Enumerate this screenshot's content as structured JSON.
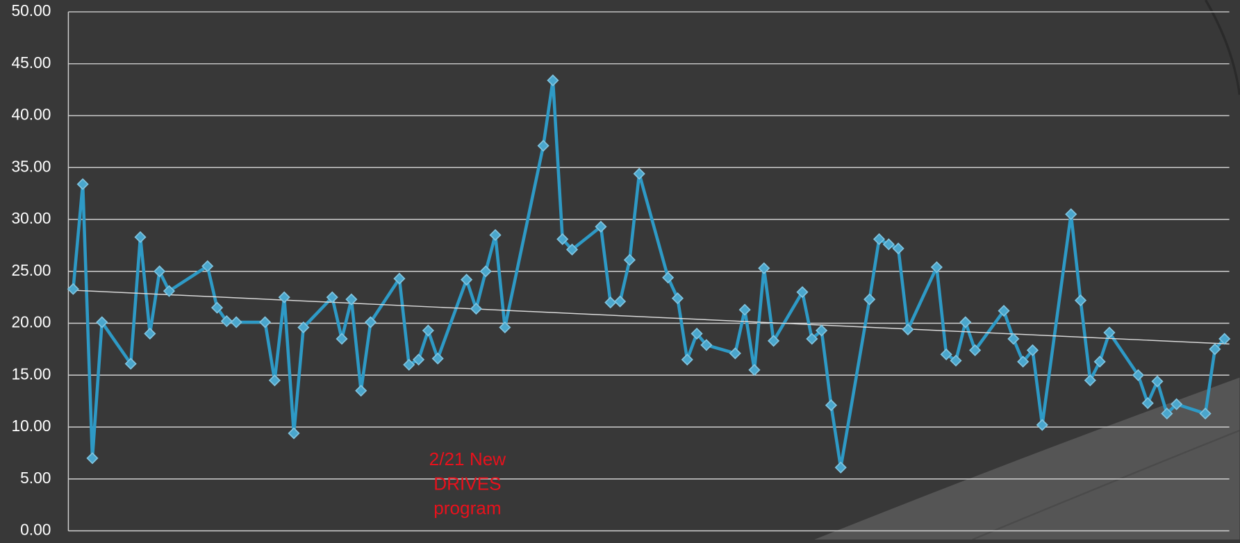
{
  "chart_data": {
    "type": "line",
    "x": [
      0,
      1,
      2,
      3,
      6,
      7,
      8,
      9,
      10,
      14,
      15,
      16,
      17,
      20,
      21,
      22,
      23,
      24,
      27,
      28,
      29,
      30,
      31,
      34,
      35,
      36,
      37,
      38,
      41,
      42,
      43,
      44,
      45,
      49,
      50,
      51,
      52,
      55,
      56,
      57,
      58,
      59,
      62,
      63,
      64,
      65,
      66,
      69,
      70,
      71,
      72,
      73,
      76,
      77,
      78,
      79,
      80,
      83,
      84,
      85,
      86,
      87,
      90,
      91,
      92,
      93,
      94,
      97,
      98,
      99,
      100,
      101,
      104,
      105,
      106,
      107,
      108,
      111,
      112,
      113,
      114,
      115,
      118,
      119,
      120
    ],
    "series": [
      {
        "color": "#2e9ac6",
        "values": [
          23.3,
          33.4,
          7.0,
          20.1,
          16.1,
          28.3,
          19.0,
          25.0,
          23.1,
          25.5,
          21.5,
          20.2,
          20.1,
          20.1,
          14.5,
          22.5,
          9.4,
          19.6,
          22.5,
          18.5,
          22.3,
          13.5,
          20.1,
          24.3,
          16.0,
          16.5,
          19.3,
          16.6,
          24.2,
          21.4,
          25.0,
          28.5,
          19.6,
          37.1,
          43.4,
          28.1,
          27.1,
          29.3,
          22.0,
          22.1,
          26.1,
          34.4,
          24.4,
          22.4,
          16.5,
          19.0,
          17.9,
          17.1,
          21.3,
          15.5,
          25.3,
          18.3,
          23.0,
          18.5,
          19.3,
          12.1,
          6.1,
          22.3,
          28.1,
          27.6,
          27.2,
          19.4,
          25.4,
          17.0,
          16.4,
          20.1,
          17.4,
          21.2,
          18.5,
          16.3,
          17.4,
          10.2,
          30.5,
          22.2,
          14.5,
          16.3,
          19.1,
          15.0,
          12.3,
          14.4,
          11.3,
          12.2,
          11.3,
          17.5,
          18.5
        ]
      }
    ],
    "trendline": {
      "color": "#d9d9d9",
      "values": [
        23.2,
        18.0
      ]
    },
    "xlim": [
      -0.5,
      120.5
    ],
    "ylim": [
      0,
      50
    ],
    "yticks": [
      {
        "value": 0,
        "label": "0.00"
      },
      {
        "value": 5,
        "label": "5.00"
      },
      {
        "value": 10,
        "label": "10.00"
      },
      {
        "value": 15,
        "label": "15.00"
      },
      {
        "value": 20,
        "label": "20.00"
      },
      {
        "value": 25,
        "label": "25.00"
      },
      {
        "value": 30,
        "label": "30.00"
      },
      {
        "value": 35,
        "label": "35.00"
      },
      {
        "value": 40,
        "label": "40.00"
      },
      {
        "value": 45,
        "label": "45.00"
      },
      {
        "value": 50,
        "label": "50.00"
      }
    ],
    "grid": true,
    "annotation": {
      "lines": [
        "2/21 New",
        "DRIVES",
        "program"
      ],
      "color": "#e8111c"
    }
  }
}
